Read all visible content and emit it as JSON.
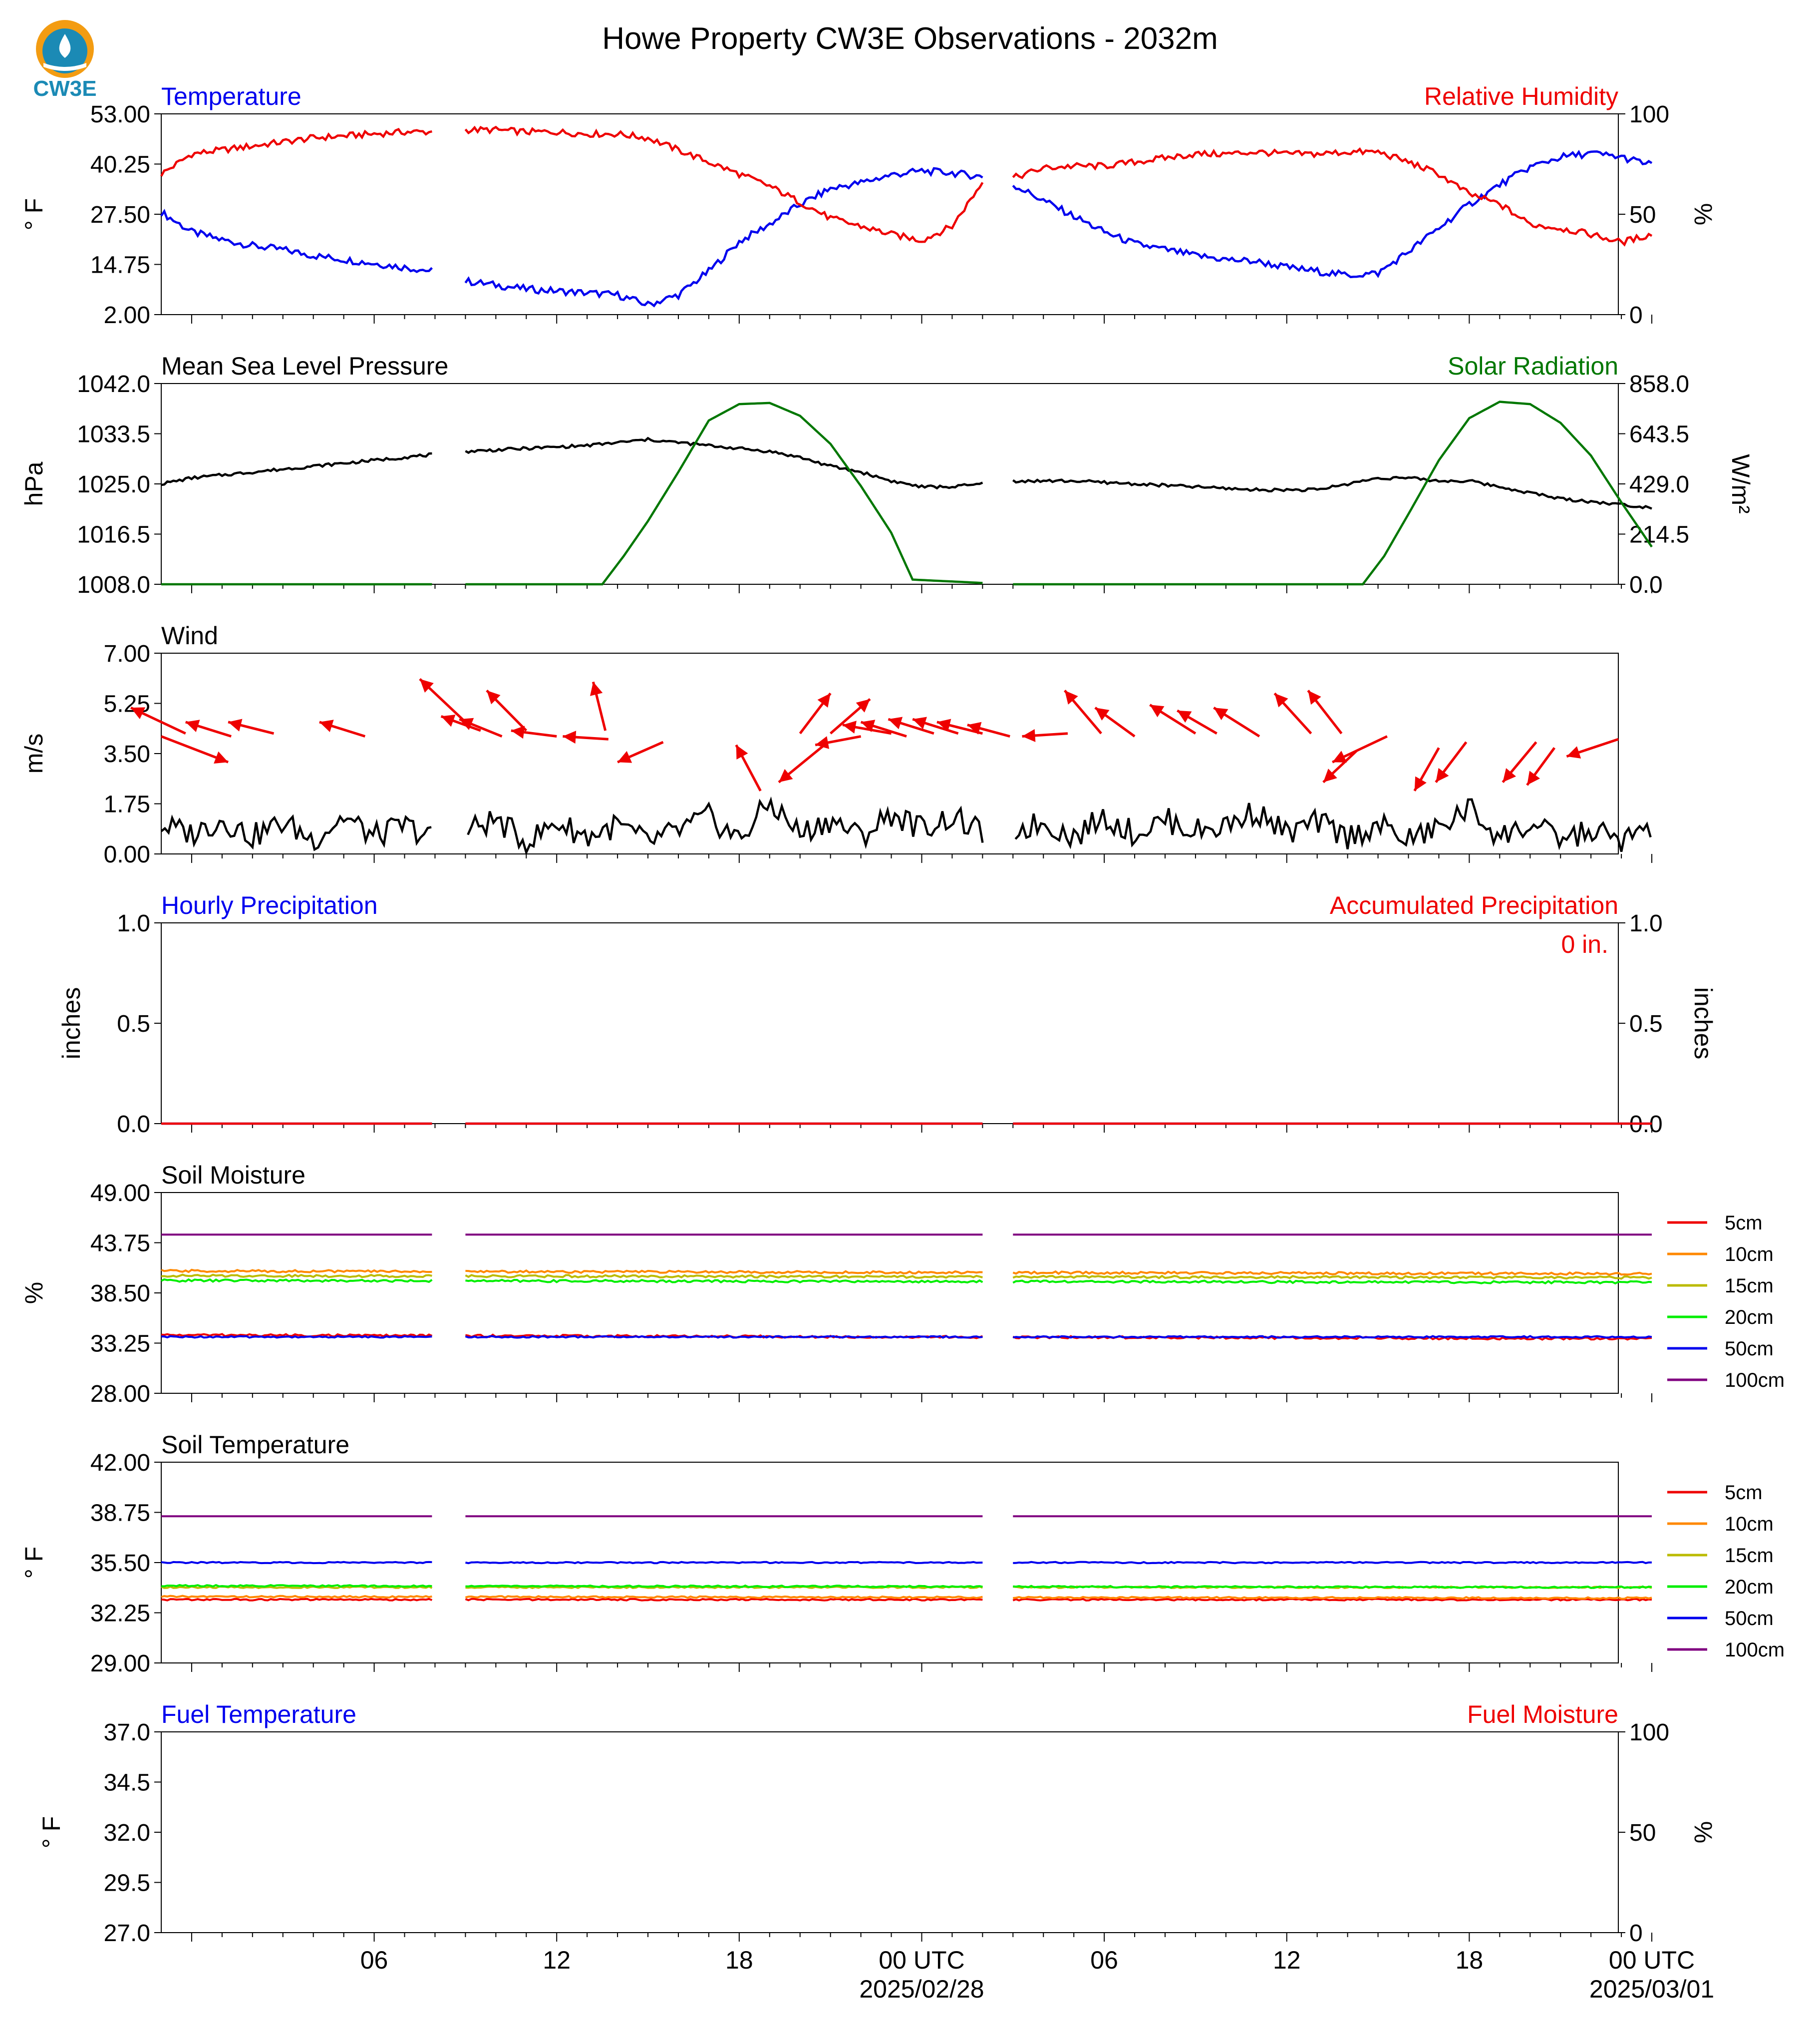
{
  "title": "Howe Property CW3E Observations - 2032m",
  "logo": {
    "text": "CW3E",
    "colors": {
      "ring": "#f39c12",
      "drop": "#1b8ab5",
      "text": "#1b8ab5"
    }
  },
  "time_axis": {
    "start_hour": -1,
    "end_hour": 46.9,
    "ticks": [
      {
        "hour": 6,
        "label": "06",
        "sublabel": ""
      },
      {
        "hour": 12,
        "label": "12",
        "sublabel": ""
      },
      {
        "hour": 18,
        "label": "18",
        "sublabel": ""
      },
      {
        "hour": 24,
        "label": "00 UTC",
        "sublabel": "2025/02/28"
      },
      {
        "hour": 30,
        "label": "06",
        "sublabel": ""
      },
      {
        "hour": 36,
        "label": "12",
        "sublabel": ""
      },
      {
        "hour": 42,
        "label": "18",
        "sublabel": ""
      },
      {
        "hour": 48,
        "label": "00 UTC",
        "sublabel": "2025/03/01"
      }
    ],
    "gaps": [
      [
        7.99,
        8.99
      ],
      [
        26.01,
        26.99
      ]
    ]
  },
  "chart_data": [
    {
      "type": "line",
      "title": "Temperature",
      "right_title": "Relative Humidity",
      "ylabel": "° F",
      "y2label": "%",
      "ylim": [
        2.0,
        53.0
      ],
      "yticks": [
        "53.00",
        "40.25",
        "27.50",
        "14.75",
        "2.00"
      ],
      "y2lim": [
        0,
        100
      ],
      "y2ticks": [
        "100",
        "50",
        "0"
      ],
      "series": [
        {
          "name": "Temperature",
          "axis": "left",
          "color": "#0000ee",
          "x": [
            -1,
            0,
            1,
            2,
            3,
            4,
            5,
            6,
            7,
            8,
            9,
            10,
            11,
            12,
            13,
            14,
            15,
            16,
            17,
            18,
            19,
            20,
            21,
            22,
            23,
            24,
            25,
            26,
            27,
            28,
            29,
            30,
            31,
            32,
            33,
            34,
            35,
            36,
            37,
            38,
            39,
            40,
            41,
            42,
            43,
            44,
            45,
            46,
            47,
            48
          ],
          "y": [
            28,
            23,
            21,
            19.5,
            18.5,
            17,
            16,
            15,
            14,
            13,
            10.5,
            9.5,
            8.5,
            8,
            7.5,
            7,
            4.5,
            7,
            13,
            20.5,
            25,
            30,
            34,
            35.5,
            37.5,
            38.5,
            38,
            37,
            35,
            31,
            27,
            23,
            20,
            18.5,
            17,
            16,
            15.5,
            14,
            13,
            12,
            12.5,
            18,
            24,
            30,
            35,
            39.5,
            42,
            43,
            42,
            40
          ]
        },
        {
          "name": "Relative Humidity",
          "axis": "right",
          "color": "#ee0000",
          "x": [
            -1,
            0,
            1,
            2,
            3,
            4,
            5,
            6,
            7,
            8,
            9,
            10,
            11,
            12,
            13,
            14,
            15,
            16,
            17,
            18,
            19,
            20,
            21,
            22,
            23,
            24,
            25,
            26,
            27,
            28,
            29,
            30,
            31,
            32,
            33,
            34,
            35,
            36,
            37,
            38,
            39,
            40,
            41,
            42,
            43,
            44,
            45,
            46,
            47,
            48
          ],
          "y": [
            70,
            80,
            82,
            84,
            86,
            88,
            89,
            90,
            91,
            91,
            92,
            92,
            91,
            91,
            90,
            90,
            88,
            82,
            76,
            70,
            64,
            56,
            48,
            44,
            40,
            37,
            44,
            66,
            68,
            73,
            74,
            74,
            76,
            78,
            80,
            80,
            81,
            80,
            80,
            81,
            81,
            76,
            70,
            60,
            55,
            45,
            43,
            40,
            36,
            40
          ]
        }
      ]
    },
    {
      "type": "line",
      "title": "Mean Sea Level Pressure",
      "right_title": "Solar Radiation",
      "ylabel": "hPa",
      "y2label": "W/m²",
      "ylim": [
        1008.0,
        1042.0
      ],
      "yticks": [
        "1042.0",
        "1033.5",
        "1025.0",
        "1016.5",
        "1008.0"
      ],
      "y2lim": [
        0.0,
        858.0
      ],
      "y2ticks": [
        "858.0",
        "643.5",
        "429.0",
        "214.5",
        "0.0"
      ],
      "series": [
        {
          "name": "Mean Sea Level Pressure",
          "axis": "left",
          "color": "#000000",
          "x": [
            -1,
            0,
            2,
            4,
            6,
            8,
            9,
            11,
            13,
            14,
            15,
            16,
            17,
            18,
            19,
            20,
            21,
            22,
            23,
            24,
            25,
            26,
            27,
            29,
            31,
            33,
            35,
            37,
            38,
            39,
            40,
            41,
            42,
            43,
            44,
            45,
            46,
            47,
            48
          ],
          "y": [
            1025,
            1026,
            1027,
            1028,
            1029,
            1030,
            1030.5,
            1031,
            1031.5,
            1032,
            1032.5,
            1032,
            1031.5,
            1031,
            1030.5,
            1029.5,
            1028,
            1027,
            1025.5,
            1024.5,
            1024.5,
            1025,
            1025.5,
            1025.5,
            1025,
            1024.5,
            1024,
            1024,
            1025,
            1026,
            1026,
            1025.5,
            1025.5,
            1024.5,
            1023.5,
            1022.5,
            1022,
            1021.5,
            1021
          ]
        },
        {
          "name": "Solar Radiation",
          "axis": "right",
          "color": "#007700",
          "x": [
            -1,
            13.5,
            14.2,
            15,
            16,
            17,
            18,
            19,
            20,
            21,
            22,
            23,
            23.7,
            26.9,
            38.5,
            39.2,
            40,
            41,
            42,
            43,
            44,
            45,
            46,
            47,
            48
          ],
          "y": [
            0,
            0,
            120,
            270,
            480,
            700,
            770,
            775,
            720,
            600,
            420,
            220,
            20,
            0,
            0,
            120,
            300,
            530,
            710,
            780,
            770,
            690,
            550,
            350,
            160
          ]
        }
      ]
    },
    {
      "type": "line",
      "title": "Wind",
      "ylabel": "m/s",
      "ylim": [
        0.0,
        7.0
      ],
      "yticks": [
        "7.00",
        "5.25",
        "3.50",
        "1.75",
        "0.00"
      ],
      "series": [
        {
          "name": "Wind Speed",
          "color": "#000000",
          "x": [
            -1,
            0,
            1,
            2,
            3,
            4,
            5,
            6,
            7,
            8,
            9,
            10,
            11,
            12,
            13,
            14,
            15,
            16,
            17,
            18,
            19,
            20,
            21,
            22,
            23,
            24,
            25,
            26,
            27,
            28,
            29,
            30,
            31,
            32,
            33,
            34,
            35,
            36,
            37,
            38,
            39,
            40,
            41,
            42,
            43,
            44,
            45,
            46,
            47,
            48
          ],
          "y": [
            1,
            0.7,
            1.2,
            0.6,
            1.1,
            0.5,
            1.3,
            0.6,
            1.0,
            0.5,
            0.8,
            1.2,
            0.4,
            1.1,
            0.6,
            1.0,
            0.4,
            0.8,
            1.3,
            0.5,
            1.8,
            0.7,
            1.2,
            0.6,
            1.4,
            0.9,
            1.3,
            0.7,
            0.8,
            1.1,
            0.6,
            1.3,
            0.7,
            1.2,
            0.8,
            1.0,
            1.5,
            0.7,
            1.1,
            0.6,
            1.0,
            0.5,
            0.9,
            1.6,
            0.6,
            1.0,
            0.5,
            0.8,
            0.5,
            0.8
          ]
        },
        {
          "name": "Wind Direction",
          "type": "arrows",
          "color": "#ee0000",
          "arrows": [
            {
              "x": -1.0,
              "y": 4.1,
              "dx": 2.2,
              "dy": -0.9
            },
            {
              "x": -0.2,
              "y": 4.2,
              "dx": -1.8,
              "dy": 0.9
            },
            {
              "x": 1.3,
              "y": 4.1,
              "dx": -1.5,
              "dy": 0.5
            },
            {
              "x": 2.7,
              "y": 4.2,
              "dx": -1.5,
              "dy": 0.4
            },
            {
              "x": 5.7,
              "y": 4.1,
              "dx": -1.5,
              "dy": 0.5
            },
            {
              "x": 9.0,
              "y": 4.6,
              "dx": -1.5,
              "dy": 1.5
            },
            {
              "x": 9.5,
              "y": 4.3,
              "dx": -1.3,
              "dy": 0.5
            },
            {
              "x": 10.2,
              "y": 4.1,
              "dx": -1.4,
              "dy": 0.6
            },
            {
              "x": 11.0,
              "y": 4.3,
              "dx": -1.3,
              "dy": 1.4
            },
            {
              "x": 12.0,
              "y": 4.1,
              "dx": -1.5,
              "dy": 0.2
            },
            {
              "x": 13.7,
              "y": 4.0,
              "dx": -1.5,
              "dy": 0.1
            },
            {
              "x": 13.6,
              "y": 4.3,
              "dx": -0.4,
              "dy": 1.7
            },
            {
              "x": 15.5,
              "y": 3.9,
              "dx": -1.5,
              "dy": -0.7
            },
            {
              "x": 18.7,
              "y": 2.2,
              "dx": -0.8,
              "dy": 1.6
            },
            {
              "x": 20.8,
              "y": 3.8,
              "dx": -1.5,
              "dy": -1.3
            },
            {
              "x": 20.0,
              "y": 4.2,
              "dx": 1.0,
              "dy": 1.4
            },
            {
              "x": 22.0,
              "y": 4.1,
              "dx": -1.5,
              "dy": -0.3
            },
            {
              "x": 21.0,
              "y": 4.2,
              "dx": 1.3,
              "dy": 1.2
            },
            {
              "x": 23.0,
              "y": 4.2,
              "dx": -1.6,
              "dy": 0.3
            },
            {
              "x": 23.5,
              "y": 4.1,
              "dx": -1.5,
              "dy": 0.5
            },
            {
              "x": 24.4,
              "y": 4.2,
              "dx": -1.5,
              "dy": 0.5
            },
            {
              "x": 25.2,
              "y": 4.2,
              "dx": -1.5,
              "dy": 0.5
            },
            {
              "x": 26.0,
              "y": 4.2,
              "dx": -1.5,
              "dy": 0.4
            },
            {
              "x": 26.9,
              "y": 4.1,
              "dx": -1.4,
              "dy": 0.4
            },
            {
              "x": 28.8,
              "y": 4.2,
              "dx": -1.5,
              "dy": -0.1
            },
            {
              "x": 29.9,
              "y": 4.2,
              "dx": -1.2,
              "dy": 1.5
            },
            {
              "x": 31.0,
              "y": 4.1,
              "dx": -1.3,
              "dy": 1.0
            },
            {
              "x": 33.0,
              "y": 4.2,
              "dx": -1.5,
              "dy": 1.0
            },
            {
              "x": 33.7,
              "y": 4.2,
              "dx": -1.3,
              "dy": 0.8
            },
            {
              "x": 35.1,
              "y": 4.1,
              "dx": -1.5,
              "dy": 1.0
            },
            {
              "x": 36.8,
              "y": 4.2,
              "dx": -1.2,
              "dy": 1.4
            },
            {
              "x": 37.8,
              "y": 4.2,
              "dx": -1.1,
              "dy": 1.5
            },
            {
              "x": 39.3,
              "y": 4.1,
              "dx": -1.8,
              "dy": -0.9
            },
            {
              "x": 38.3,
              "y": 3.6,
              "dx": -1.1,
              "dy": -1.1
            },
            {
              "x": 41.0,
              "y": 3.7,
              "dx": -0.8,
              "dy": -1.5
            },
            {
              "x": 41.9,
              "y": 3.9,
              "dx": -1.0,
              "dy": -1.4
            },
            {
              "x": 44.2,
              "y": 3.9,
              "dx": -1.1,
              "dy": -1.4
            },
            {
              "x": 44.8,
              "y": 3.7,
              "dx": -0.9,
              "dy": -1.3
            },
            {
              "x": 46.9,
              "y": 4.0,
              "dx": -1.7,
              "dy": -0.6
            }
          ]
        }
      ]
    },
    {
      "type": "line",
      "title": "Hourly Precipitation",
      "right_title": "Accumulated Precipitation",
      "annotation": "0 in.",
      "ylabel": "inches",
      "y2label": "inches",
      "ylim": [
        0.0,
        1.0
      ],
      "yticks": [
        "1.0",
        "0.5",
        "0.0"
      ],
      "y2lim": [
        0.0,
        1.0
      ],
      "y2ticks": [
        "1.0",
        "0.5",
        "0.0"
      ],
      "series": [
        {
          "name": "Hourly Precipitation",
          "axis": "left",
          "color": "#0000ee",
          "x": [
            -1,
            48
          ],
          "y": [
            0,
            0
          ]
        },
        {
          "name": "Accumulated Precipitation",
          "axis": "right",
          "color": "#ee0000",
          "x": [
            -1,
            48
          ],
          "y": [
            0,
            0
          ]
        }
      ]
    },
    {
      "type": "line",
      "title": "Soil Moisture",
      "ylabel": "%",
      "ylim": [
        28.0,
        49.0
      ],
      "yticks": [
        "49.00",
        "43.75",
        "38.50",
        "33.25",
        "28.00"
      ],
      "legend": "right",
      "series": [
        {
          "name": "5cm",
          "color": "#ee0000",
          "x": [
            -1,
            48
          ],
          "y": [
            34.1,
            33.7
          ]
        },
        {
          "name": "10cm",
          "color": "#ff8800",
          "x": [
            -1,
            48
          ],
          "y": [
            40.8,
            40.5
          ]
        },
        {
          "name": "15cm",
          "color": "#bbbb00",
          "x": [
            -1,
            48
          ],
          "y": [
            40.3,
            40.1
          ]
        },
        {
          "name": "20cm",
          "color": "#00ee00",
          "x": [
            -1,
            48
          ],
          "y": [
            39.8,
            39.6
          ]
        },
        {
          "name": "50cm",
          "color": "#0000ee",
          "x": [
            -1,
            48
          ],
          "y": [
            33.9,
            33.9
          ]
        },
        {
          "name": "100cm",
          "color": "#800080",
          "x": [
            -1,
            48
          ],
          "y": [
            44.6,
            44.6
          ]
        }
      ]
    },
    {
      "type": "line",
      "title": "Soil Temperature",
      "ylabel": "° F",
      "ylim": [
        29.0,
        42.0
      ],
      "yticks": [
        "42.00",
        "38.75",
        "35.50",
        "32.25",
        "29.00"
      ],
      "legend": "right",
      "series": [
        {
          "name": "5cm",
          "color": "#ee0000",
          "x": [
            -1,
            48
          ],
          "y": [
            33.1,
            33.1
          ]
        },
        {
          "name": "10cm",
          "color": "#ff8800",
          "x": [
            -1,
            48
          ],
          "y": [
            33.3,
            33.2
          ]
        },
        {
          "name": "15cm",
          "color": "#bbbb00",
          "x": [
            -1,
            48
          ],
          "y": [
            33.9,
            33.9
          ]
        },
        {
          "name": "20cm",
          "color": "#00ee00",
          "x": [
            -1,
            48
          ],
          "y": [
            34.0,
            33.9
          ]
        },
        {
          "name": "50cm",
          "color": "#0000ee",
          "x": [
            -1,
            48
          ],
          "y": [
            35.5,
            35.5
          ]
        },
        {
          "name": "100cm",
          "color": "#800080",
          "x": [
            -1,
            48
          ],
          "y": [
            38.5,
            38.5
          ]
        }
      ]
    },
    {
      "type": "line",
      "title": "Fuel Temperature",
      "right_title": "Fuel Moisture",
      "ylabel": "° F",
      "y2label": "%",
      "ylim": [
        27.0,
        37.0
      ],
      "yticks": [
        "37.0",
        "34.5",
        "32.0",
        "29.5",
        "27.0"
      ],
      "y2lim": [
        0,
        100
      ],
      "y2ticks": [
        "100",
        "50",
        "0"
      ],
      "series": []
    }
  ]
}
